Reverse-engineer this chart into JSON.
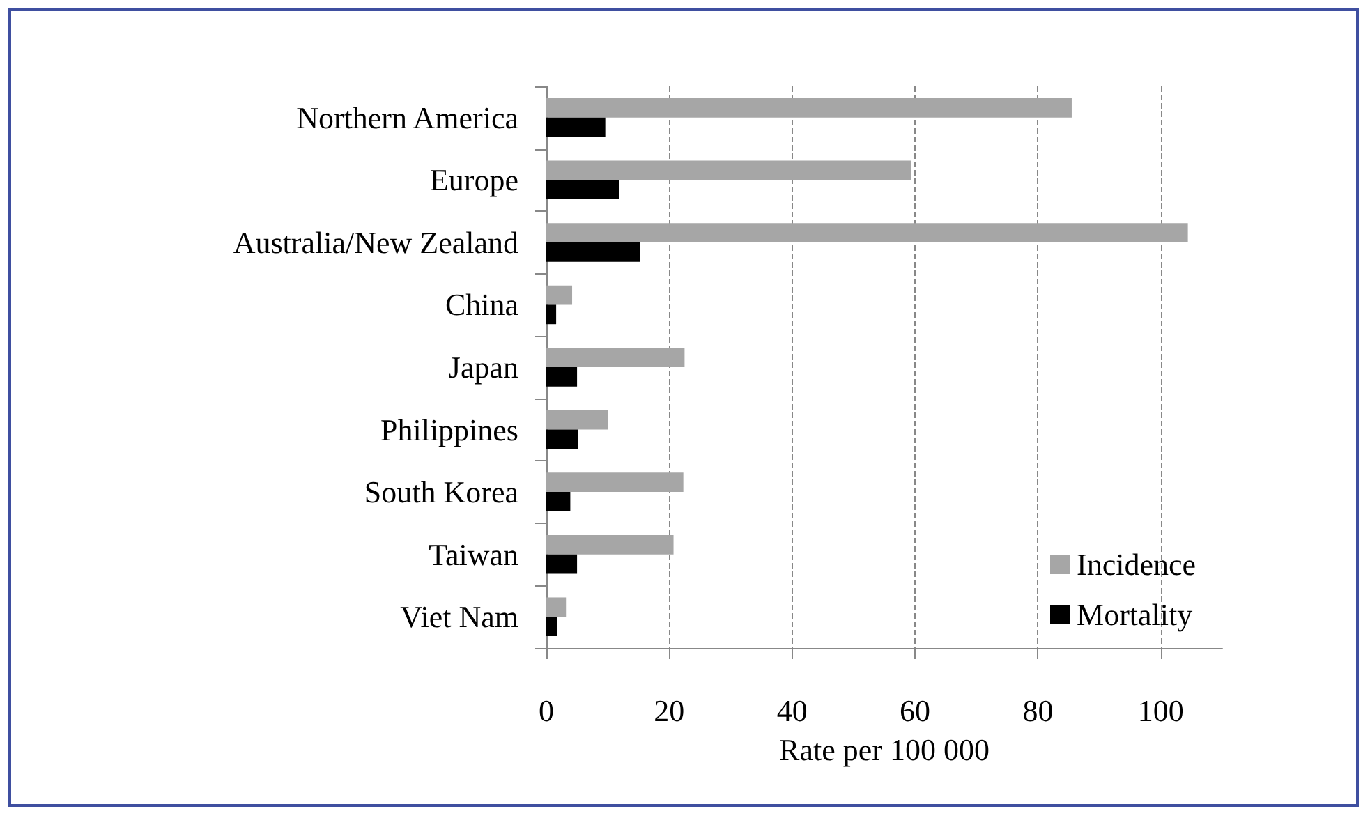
{
  "chart_data": {
    "type": "bar",
    "orientation": "horizontal",
    "categories": [
      "Northern America",
      "Europe",
      "Australia/New Zealand",
      "China",
      "Japan",
      "Philippines",
      "South Korea",
      "Taiwan",
      "Viet Nam"
    ],
    "series": [
      {
        "name": "Incidence",
        "color": "#a6a6a6",
        "values": [
          85.5,
          59.4,
          104.4,
          4.2,
          22.5,
          10.0,
          22.3,
          20.7,
          3.2
        ]
      },
      {
        "name": "Mortality",
        "color": "#000000",
        "values": [
          9.6,
          11.8,
          15.2,
          1.6,
          5.0,
          5.2,
          3.9,
          5.0,
          1.8
        ]
      }
    ],
    "xlabel": "Rate per 100 000",
    "xlim": [
      0,
      110
    ],
    "xticks": [
      0,
      20,
      40,
      60,
      80,
      100
    ],
    "grid": "x",
    "legend": "bottom right"
  }
}
